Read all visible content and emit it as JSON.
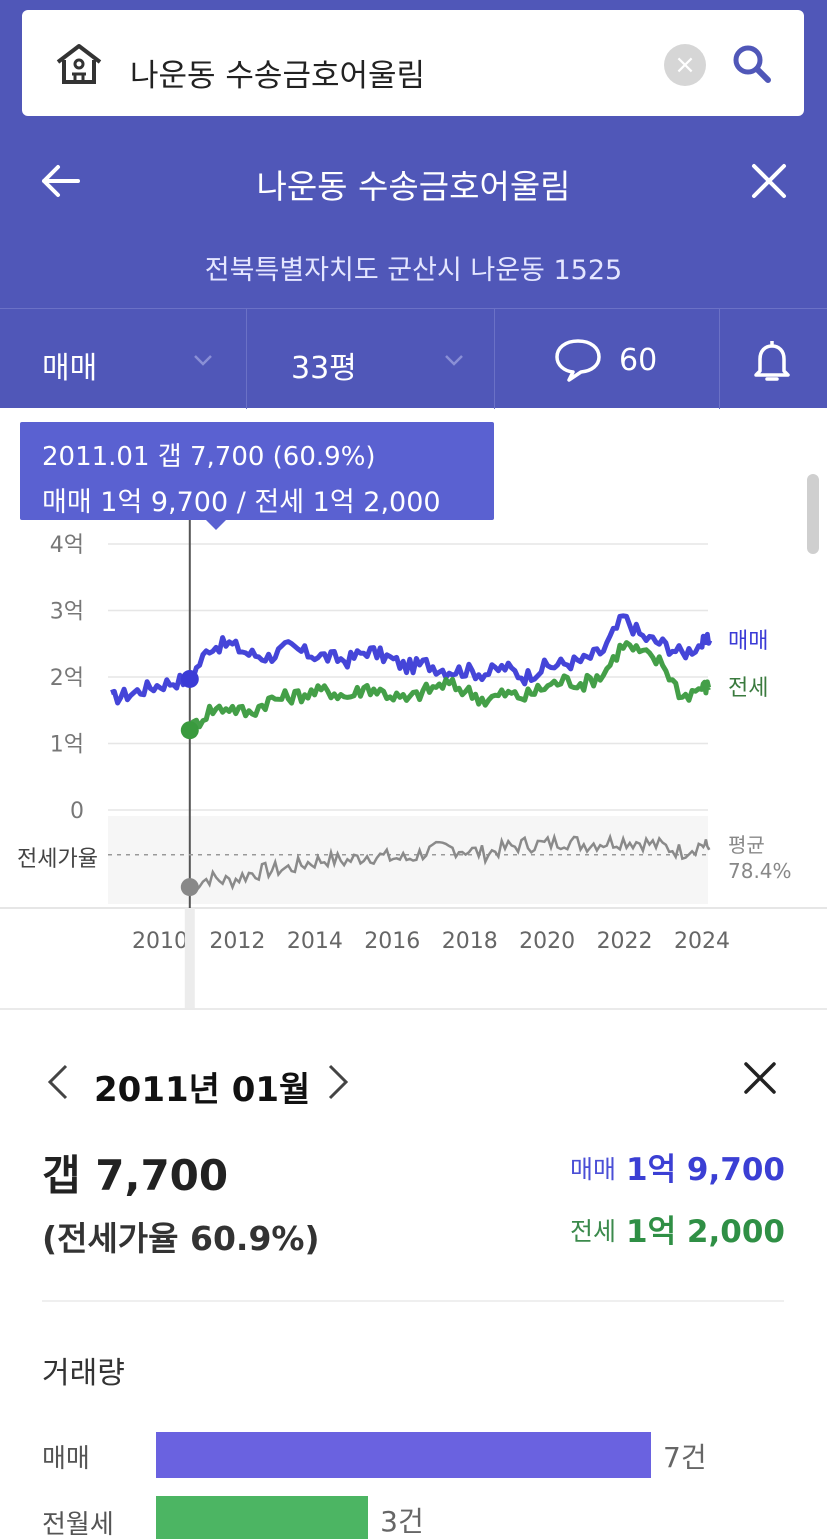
{
  "search": {
    "query": "나운동 수송금호어울림",
    "home_icon": "house-icon",
    "clear_icon": "x-circle-icon",
    "search_icon": "search-icon"
  },
  "nav": {
    "title": "나운동 수송금호어울림",
    "address": "전북특별자치도 군산시 나운동 1525"
  },
  "filters": {
    "trade_type": "매매",
    "area": "33평",
    "comments": "60"
  },
  "tooltip": {
    "line1": "2011.01  갭 7,700 (60.9%)",
    "line2": "매매 1억 9,700 / 전세 1억 2,000"
  },
  "chart_data": {
    "type": "line",
    "y_ticks": [
      "4억",
      "3억",
      "2억",
      "1억",
      "0"
    ],
    "x_ticks": [
      "2010",
      "2012",
      "2014",
      "2016",
      "2018",
      "2020",
      "2022",
      "2024"
    ],
    "ylim": [
      0,
      4
    ],
    "y_unit": "억",
    "series": [
      {
        "name": "매매",
        "color": "#3b3bd6",
        "x": [
          2009.0,
          2009.5,
          2010.0,
          2010.5,
          2011.0,
          2011.5,
          2012.0,
          2012.5,
          2013.0,
          2013.5,
          2014.0,
          2014.5,
          2015.0,
          2015.5,
          2016.0,
          2016.5,
          2017.0,
          2017.5,
          2018.0,
          2018.5,
          2019.0,
          2019.5,
          2020.0,
          2020.5,
          2021.0,
          2021.5,
          2022.0,
          2022.5,
          2023.0,
          2023.5,
          2024.0,
          2024.2
        ],
        "y": [
          1.68,
          1.75,
          1.85,
          1.92,
          1.97,
          2.45,
          2.5,
          2.35,
          2.3,
          2.45,
          2.35,
          2.3,
          2.25,
          2.4,
          2.3,
          2.15,
          2.2,
          2.1,
          2.1,
          2.05,
          2.15,
          2.0,
          2.15,
          2.2,
          2.25,
          2.4,
          2.9,
          2.6,
          2.5,
          2.35,
          2.5,
          2.55
        ]
      },
      {
        "name": "전세",
        "color": "#3a9a3e",
        "x": [
          2011.0,
          2011.5,
          2012.0,
          2012.5,
          2013.0,
          2013.5,
          2014.0,
          2014.5,
          2015.0,
          2015.5,
          2016.0,
          2016.5,
          2017.0,
          2017.5,
          2018.0,
          2018.5,
          2019.0,
          2019.5,
          2020.0,
          2020.5,
          2021.0,
          2021.5,
          2022.0,
          2022.5,
          2023.0,
          2023.5,
          2024.0,
          2024.2
        ],
        "y": [
          1.2,
          1.5,
          1.55,
          1.45,
          1.65,
          1.7,
          1.75,
          1.8,
          1.7,
          1.85,
          1.75,
          1.65,
          1.8,
          1.9,
          1.8,
          1.65,
          1.75,
          1.7,
          1.85,
          1.95,
          1.9,
          2.05,
          2.5,
          2.35,
          2.2,
          1.7,
          1.85,
          1.85
        ]
      }
    ],
    "ratio": {
      "label": "전세가율",
      "avg_label": "평균",
      "avg_value": "78.4%",
      "color": "#8a8a8a",
      "x": [
        2011.0,
        2011.5,
        2012.0,
        2012.5,
        2013.0,
        2013.5,
        2014.0,
        2014.5,
        2015.0,
        2015.5,
        2016.0,
        2016.5,
        2017.0,
        2017.5,
        2018.0,
        2018.5,
        2019.0,
        2019.5,
        2020.0,
        2020.5,
        2021.0,
        2021.5,
        2022.0,
        2022.5,
        2023.0,
        2023.5,
        2024.0,
        2024.2
      ],
      "y": [
        60.9,
        66,
        64,
        68,
        70,
        71,
        74,
        76,
        75,
        78,
        77,
        76,
        80,
        82,
        81,
        79,
        82,
        84,
        84,
        86,
        84,
        85,
        86,
        85,
        83,
        80,
        84,
        82
      ]
    },
    "selected_x": 2011.0,
    "series_labels": {
      "sale": "매매",
      "jeonse": "전세"
    }
  },
  "detail": {
    "period": "2011년 01월",
    "gap": "갭 7,700",
    "ratio": "(전세가율 60.9%)",
    "sale_label": "매매",
    "sale_value": "1억 9,700",
    "jeonse_label": "전세",
    "jeonse_value": "1억 2,000",
    "volume_title": "거래량",
    "volume": [
      {
        "label": "매매",
        "count": "7건",
        "value": 7,
        "color": "#6a62e0"
      },
      {
        "label": "전월세",
        "count": "3건",
        "value": 3,
        "color": "#4cb563"
      }
    ]
  }
}
